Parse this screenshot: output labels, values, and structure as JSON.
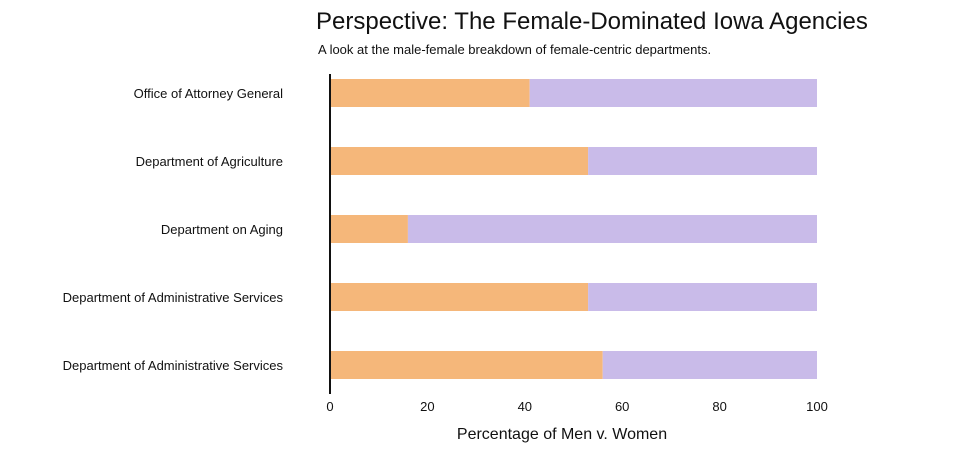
{
  "chart_data": {
    "type": "bar",
    "orientation": "horizontal",
    "stacked": true,
    "title": "Perspective: The Female-Dominated Iowa Agencies",
    "subtitle": "A look at the male-female breakdown of female-centric departments.",
    "xlabel": "Percentage of Men v. Women",
    "ylabel": "",
    "xlim": [
      0,
      100
    ],
    "xticks": [
      0,
      20,
      40,
      60,
      80,
      100
    ],
    "categories": [
      "Office of Attorney General",
      "Department of Agriculture",
      "Department on Aging",
      "Department of Administrative Services",
      "Department of Administrative Services"
    ],
    "series": [
      {
        "values": [
          41,
          53,
          16,
          53,
          56
        ],
        "color": "#f5b77a"
      },
      {
        "values": [
          59,
          47,
          84,
          47,
          44
        ],
        "color": "#c9bbe9"
      }
    ],
    "grid": false,
    "legend": "none"
  }
}
